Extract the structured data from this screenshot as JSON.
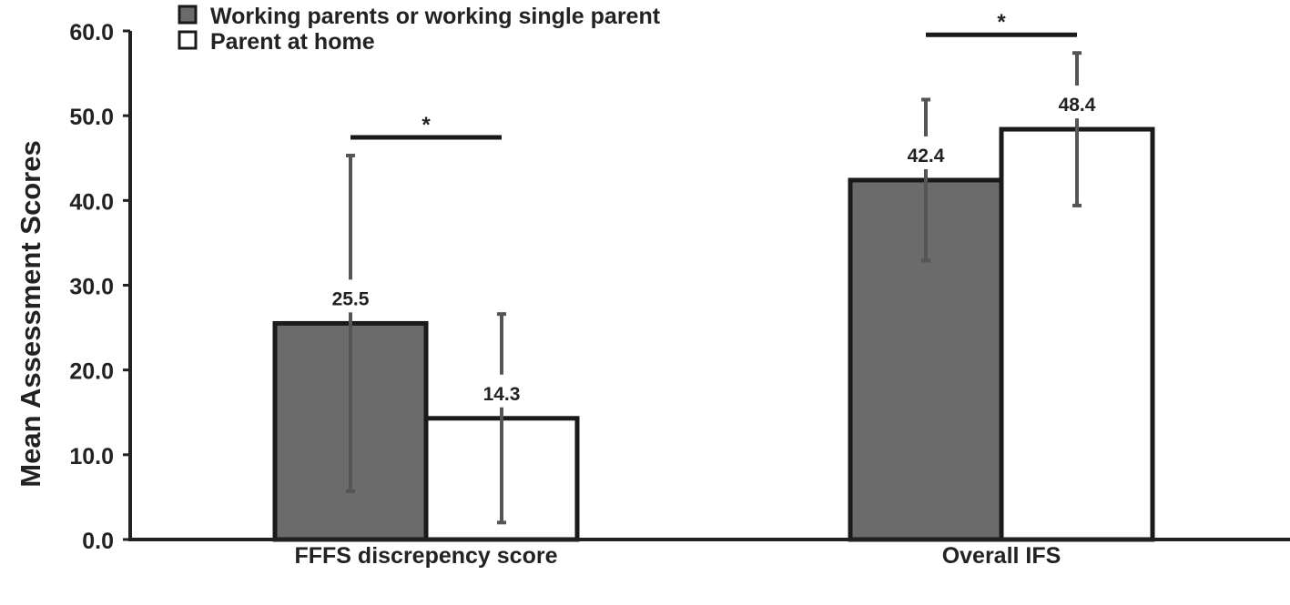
{
  "chart_data": {
    "type": "bar",
    "title": "",
    "xlabel": "",
    "ylabel": "Mean Assessment Scores",
    "ylim": [
      0,
      60
    ],
    "yticks": [
      "0.0",
      "10.0",
      "20.0",
      "30.0",
      "40.0",
      "50.0",
      "60.0"
    ],
    "grid": false,
    "legend_position": "top-left",
    "categories": [
      "FFFS discrepency score",
      "Overall IFS"
    ],
    "series": [
      {
        "name": "Working parents or working single parent",
        "color": "#6b6b6b",
        "values": [
          25.5,
          42.4
        ],
        "error": [
          19.8,
          9.5
        ],
        "labels": [
          "25.5",
          "42.4"
        ]
      },
      {
        "name": "Parent at home",
        "color": "#ffffff",
        "values": [
          14.3,
          48.4
        ],
        "error": [
          12.3,
          9.0
        ],
        "labels": [
          "14.3",
          "48.4"
        ]
      }
    ],
    "annotations": [
      {
        "category": "FFFS discrepency score",
        "text": "*"
      },
      {
        "category": "Overall IFS",
        "text": "*"
      }
    ]
  }
}
